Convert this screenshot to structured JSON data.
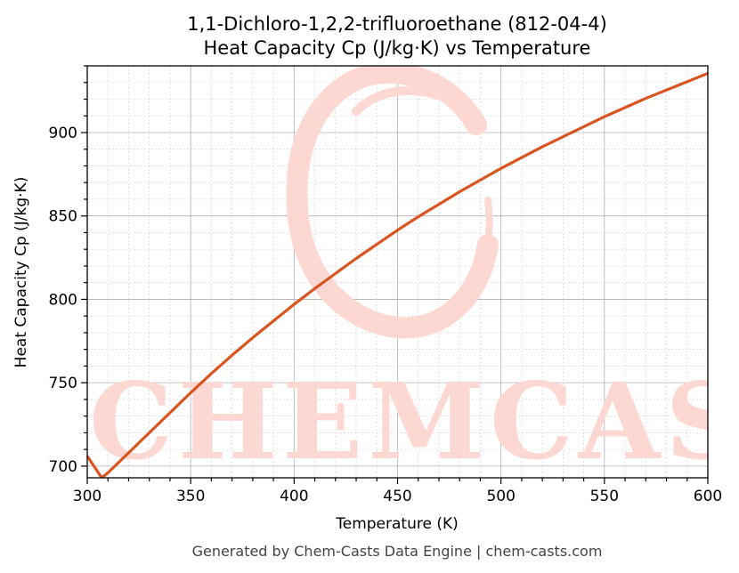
{
  "chart_data": {
    "type": "line",
    "title": "1,1-Dichloro-1,2,2-trifluoroethane (812-04-4)",
    "subtitle": "Heat Capacity Cp (J/kg·K) vs Temperature",
    "xlabel": "Temperature (K)",
    "ylabel": "Heat Capacity Cp (J/kg·K)",
    "xlim": [
      300,
      600
    ],
    "ylim": [
      693,
      940
    ],
    "xticks": [
      300,
      350,
      400,
      450,
      500,
      550,
      600
    ],
    "yticks": [
      700,
      750,
      800,
      850,
      900
    ],
    "grid": true,
    "series": [
      {
        "color": "#d9541e",
        "x": [
          300,
          307,
          310,
          320,
          330,
          340,
          350,
          360,
          370,
          380,
          390,
          400,
          410,
          420,
          430,
          440,
          450,
          460,
          470,
          480,
          490,
          500,
          510,
          520,
          530,
          540,
          550,
          560,
          570,
          580,
          590,
          600
        ],
        "y": [
          706,
          693,
          696,
          708,
          720,
          732,
          744,
          755.5,
          766.5,
          777,
          787,
          797,
          806.5,
          815.5,
          824.5,
          833,
          841.5,
          849.5,
          857,
          864.5,
          871.5,
          878.5,
          885,
          891.5,
          897.5,
          903.5,
          909.5,
          915,
          920.5,
          925.5,
          930.5,
          935.5
        ]
      }
    ]
  },
  "watermark": {
    "text": "CHEMCASTS",
    "color": "#fdd8d2"
  },
  "footer": "Generated by Chem-Casts Data Engine | chem-casts.com"
}
